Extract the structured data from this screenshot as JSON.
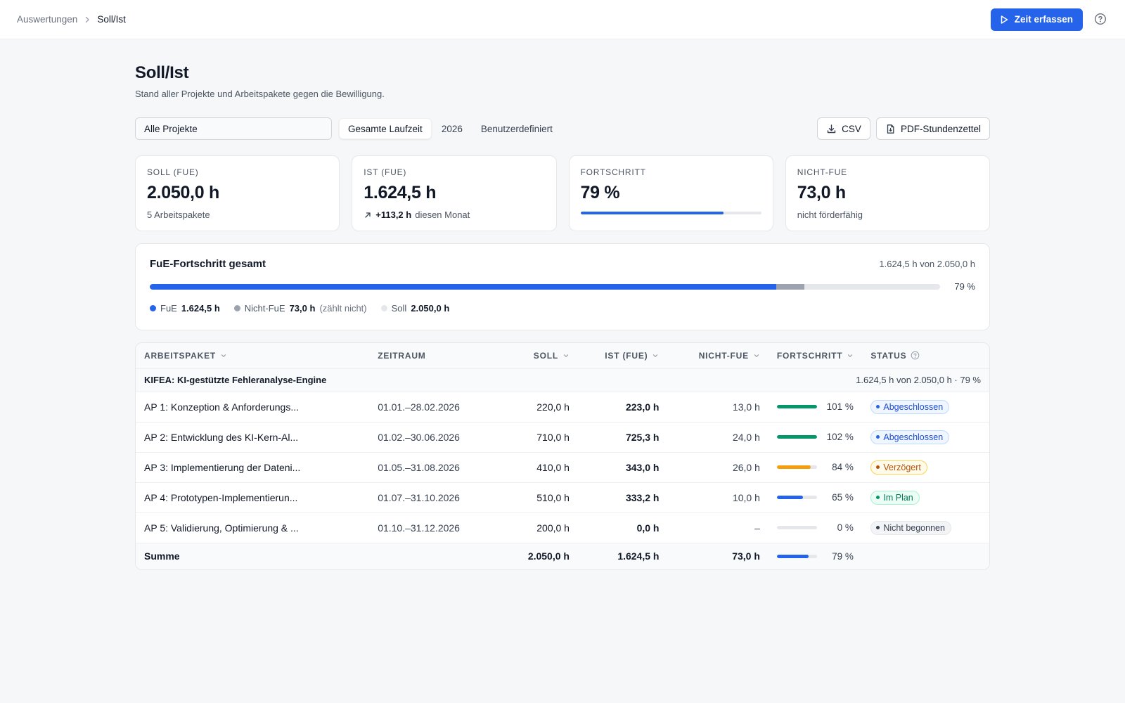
{
  "breadcrumb": {
    "parent": "Auswertungen",
    "current": "Soll/Ist"
  },
  "topbar": {
    "primary_label": "Zeit erfassen"
  },
  "page": {
    "title": "Soll/Ist",
    "subtitle": "Stand aller Projekte und Arbeitspakete gegen die Bewilligung."
  },
  "filters": {
    "project": "Alle Projekte",
    "periods": [
      "Gesamte Laufzeit",
      "2026",
      "Benutzerdefiniert"
    ],
    "active_period": "Gesamte Laufzeit",
    "csv_label": "CSV",
    "pdf_label": "PDF-Stundenzettel"
  },
  "kpis": {
    "soll": {
      "label": "Soll (FuE)",
      "value": "2.050,0 h",
      "sub": "5 Arbeitspakete"
    },
    "ist": {
      "label": "Ist (FuE)",
      "value": "1.624,5 h",
      "delta": "+113,2 h",
      "delta_suffix": "diesen Monat"
    },
    "progress": {
      "label": "Fortschritt",
      "value": "79 %",
      "fraction": 0.79
    },
    "nichtfue": {
      "label": "Nicht-FuE",
      "value": "73,0 h",
      "sub": "nicht förderfähig"
    }
  },
  "overview": {
    "title": "FuE-Fortschritt gesamt",
    "summary": "1.624,5 h von 2.050,0 h",
    "percent": "79 %",
    "fue_fraction": 0.7924,
    "nichtfue_fraction": 0.0356,
    "legend": {
      "fue_label": "FuE",
      "fue_value": "1.624,5 h",
      "nf_label": "Nicht-FuE",
      "nf_value": "73,0 h",
      "nf_note": "(zählt nicht)",
      "soll_label": "Soll",
      "soll_value": "2.050,0 h"
    }
  },
  "table": {
    "headers": {
      "ap": "Arbeitspaket",
      "zeitraum": "Zeitraum",
      "soll": "Soll",
      "ist": "Ist (FuE)",
      "nichtfue": "Nicht-FuE",
      "fortschritt": "Fortschritt",
      "status": "Status"
    },
    "group": {
      "name": "KIFEA: KI-gestützte Fehleranalyse-Engine",
      "summary": "1.624,5 h von 2.050,0 h · 79 %"
    },
    "rows": [
      {
        "name": "AP 1: Konzeption & Anforderungs...",
        "period": "01.01.–28.02.2026",
        "soll": "220,0 h",
        "ist": "223,0 h",
        "nf": "13,0 h",
        "pct": "101 %",
        "progress": 1.01,
        "status": "Abgeschlossen",
        "status_kind": "done"
      },
      {
        "name": "AP 2: Entwicklung des KI-Kern-Al...",
        "period": "01.02.–30.06.2026",
        "soll": "710,0 h",
        "ist": "725,3 h",
        "nf": "24,0 h",
        "pct": "102 %",
        "progress": 1.02,
        "status": "Abgeschlossen",
        "status_kind": "done"
      },
      {
        "name": "AP 3: Implementierung der Dateni...",
        "period": "01.05.–31.08.2026",
        "soll": "410,0 h",
        "ist": "343,0 h",
        "nf": "26,0 h",
        "pct": "84 %",
        "progress": 0.84,
        "status": "Verzögert",
        "status_kind": "delayed"
      },
      {
        "name": "AP 4: Prototypen-Implementierun...",
        "period": "01.07.–31.10.2026",
        "soll": "510,0 h",
        "ist": "333,2 h",
        "nf": "10,0 h",
        "pct": "65 %",
        "progress": 0.65,
        "status": "Im Plan",
        "status_kind": "ontrack"
      },
      {
        "name": "AP 5: Validierung, Optimierung & ...",
        "period": "01.10.–31.12.2026",
        "soll": "200,0 h",
        "ist": "0,0 h",
        "nf": "–",
        "pct": "0 %",
        "progress": 0,
        "status": "Nicht begonnen",
        "status_kind": "notstarted"
      }
    ],
    "total": {
      "label": "Summe",
      "soll": "2.050,0 h",
      "ist": "1.624,5 h",
      "nf": "73,0 h",
      "pct": "79 %",
      "progress": 0.79
    }
  },
  "colors": {
    "accent": "#2563eb",
    "green": "#059669",
    "orange": "#f59e0b",
    "grey": "#9ca3af",
    "track": "#e5e7eb"
  },
  "status_styles": {
    "done": {
      "fg": "#1d4ed8",
      "bg": "#eff6ff",
      "border": "#bfdbfe",
      "dot": "#2563eb",
      "bar": "#059669"
    },
    "delayed": {
      "fg": "#b45309",
      "bg": "#fffbeb",
      "border": "#fcd34d",
      "dot": "#b45309",
      "bar": "#f59e0b"
    },
    "ontrack": {
      "fg": "#047857",
      "bg": "#ecfdf5",
      "border": "#a7f3d0",
      "dot": "#059669",
      "bar": "#2563eb"
    },
    "notstarted": {
      "fg": "#374151",
      "bg": "#f3f4f6",
      "border": "#e5e7eb",
      "dot": "#374151",
      "bar": "#e5e7eb"
    }
  }
}
